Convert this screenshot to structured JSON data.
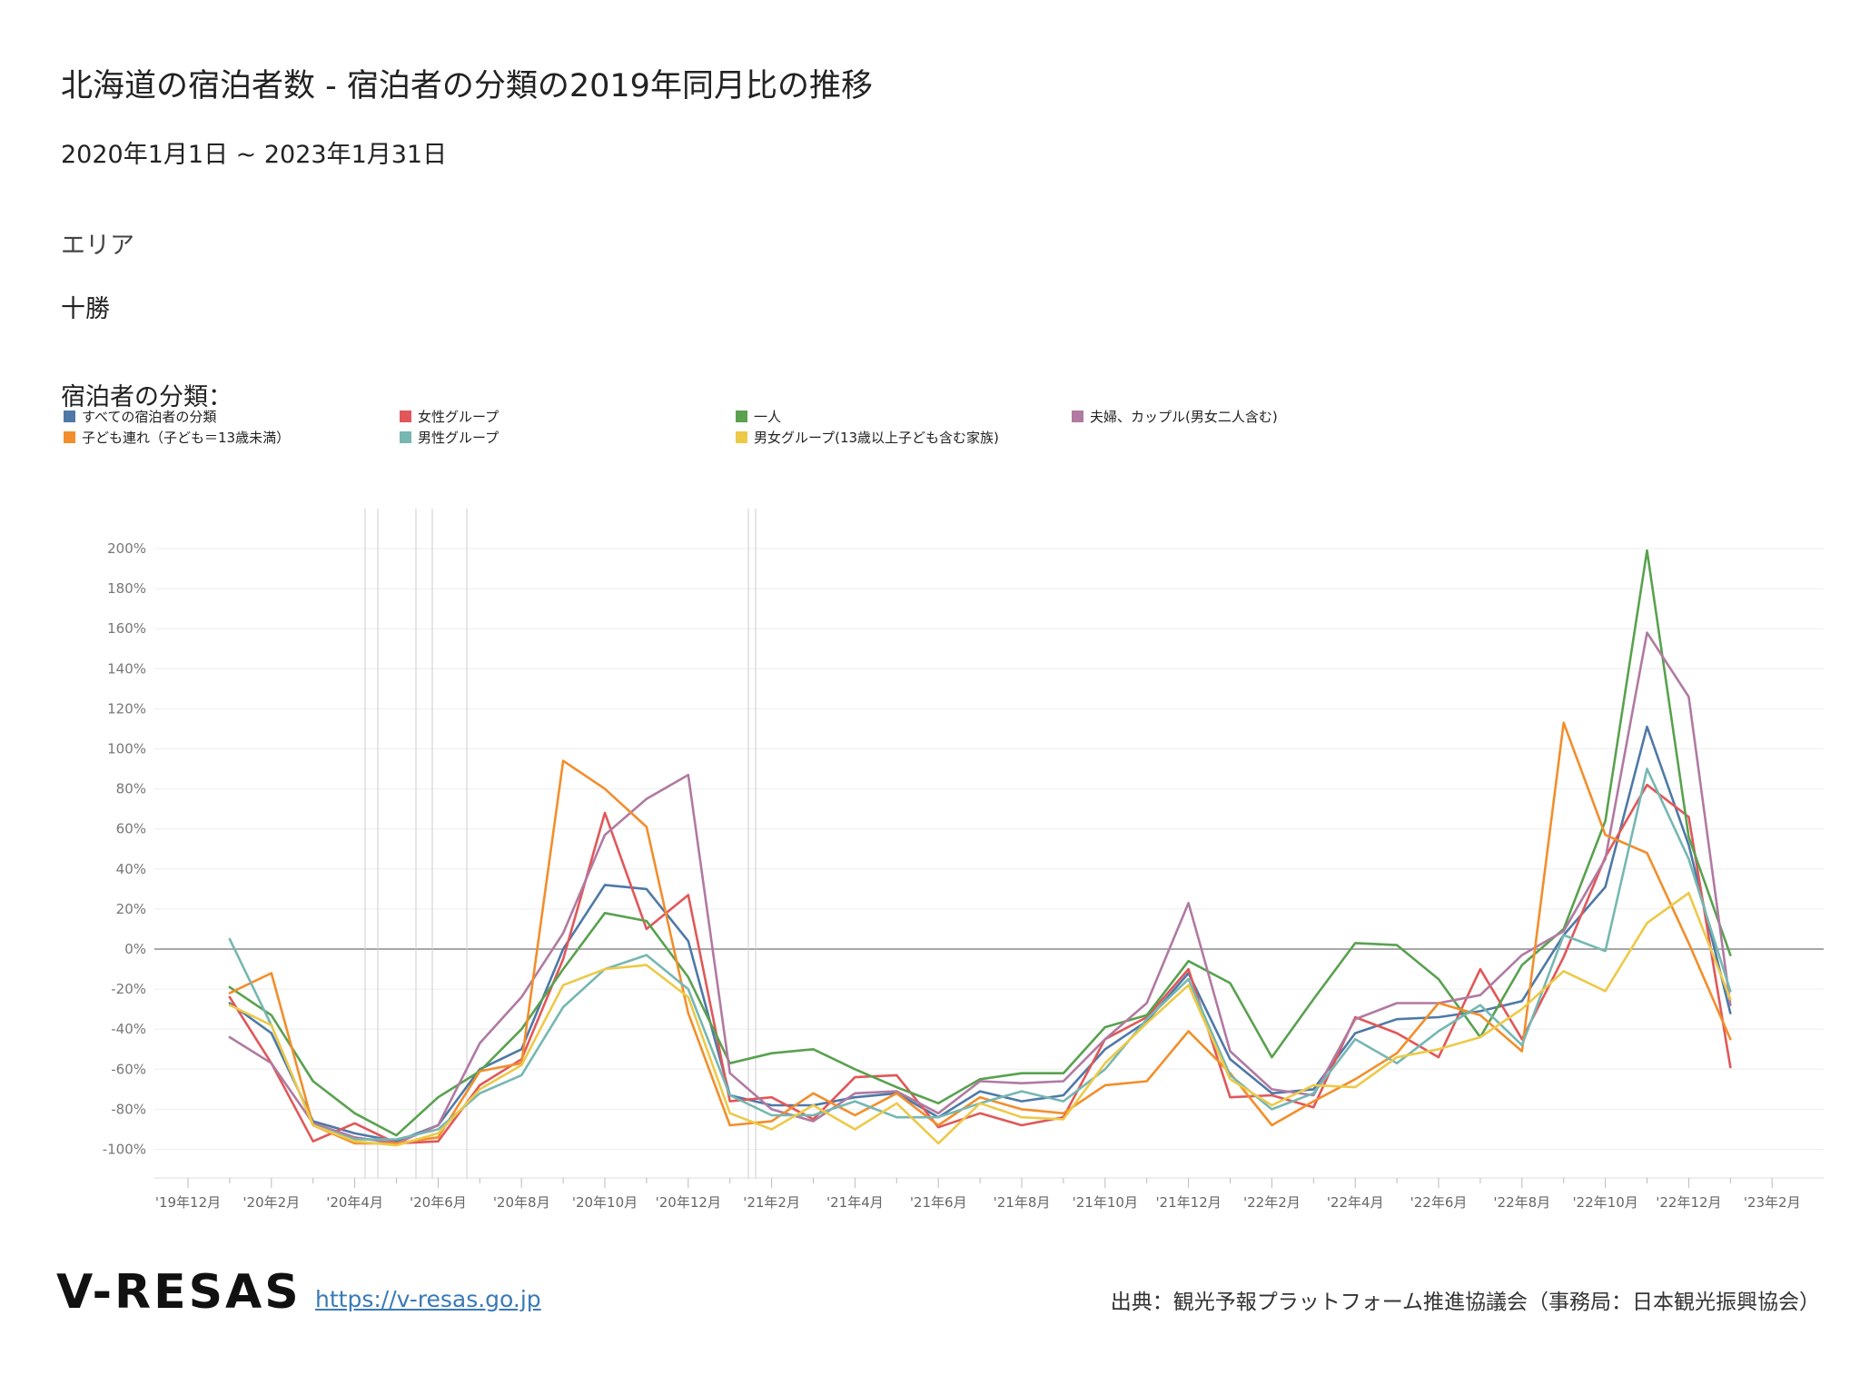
{
  "title": "北海道の宿泊者数 - 宿泊者の分類の2019年同月比の推移",
  "period": "2020年1月1日 ~ 2023年1月31日",
  "area_label": "エリア",
  "area_value": "十勝",
  "legend_title": "宿泊者の分類：",
  "footer": {
    "logo": "V-RESAS",
    "link": "https://v-resas.go.jp",
    "source": "出典：観光予報プラットフォーム推進協議会（事務局：日本観光振興協会）"
  },
  "chart_data": {
    "type": "line",
    "x": [
      "2020-01",
      "2020-02",
      "2020-03",
      "2020-04",
      "2020-05",
      "2020-06",
      "2020-07",
      "2020-08",
      "2020-09",
      "2020-10",
      "2020-11",
      "2020-12",
      "2021-01",
      "2021-02",
      "2021-03",
      "2021-04",
      "2021-05",
      "2021-06",
      "2021-07",
      "2021-08",
      "2021-09",
      "2021-10",
      "2021-11",
      "2021-12",
      "2022-01",
      "2022-02",
      "2022-03",
      "2022-04",
      "2022-05",
      "2022-06",
      "2022-07",
      "2022-08",
      "2022-09",
      "2022-10",
      "2022-11",
      "2022-12",
      "2023-01"
    ],
    "x_ticks": [
      "'19年12月",
      "'20年2月",
      "'20年4月",
      "'20年6月",
      "'20年8月",
      "'20年10月",
      "'20年12月",
      "'21年2月",
      "'21年4月",
      "'21年6月",
      "'21年8月",
      "'21年10月",
      "'21年12月",
      "'22年2月",
      "'22年4月",
      "'22年6月",
      "'22年8月",
      "'22年10月",
      "'22年12月",
      "'23年2月"
    ],
    "y_ticks": [
      "200%",
      "180%",
      "160%",
      "140%",
      "120%",
      "100%",
      "80%",
      "60%",
      "40%",
      "20%",
      "0%",
      "-20%",
      "-40%",
      "-60%",
      "-80%",
      "-100%"
    ],
    "ylim": [
      -110,
      205
    ],
    "grid": true,
    "legend_position": "top",
    "series": [
      {
        "name": "すべての宿泊者の分類",
        "color": "#4e79a7",
        "values": [
          -27,
          -42,
          -86,
          -92,
          -96,
          -88,
          -60,
          -50,
          0,
          32,
          30,
          4,
          -73,
          -78,
          -78,
          -74,
          -72,
          -84,
          -71,
          -76,
          -73,
          -50,
          -36,
          -12,
          -55,
          -72,
          -70,
          -42,
          -35,
          -34,
          -31,
          -26,
          7,
          31,
          111,
          52,
          -32
        ]
      },
      {
        "name": "女性グループ",
        "color": "#e15759",
        "values": [
          -24,
          -57,
          -96,
          -87,
          -97,
          -96,
          -68,
          -55,
          -5,
          68,
          10,
          27,
          -76,
          -74,
          -85,
          -64,
          -63,
          -89,
          -82,
          -88,
          -84,
          -45,
          -34,
          -10,
          -74,
          -73,
          -79,
          -34,
          -42,
          -54,
          -10,
          -45,
          -4,
          46,
          82,
          66,
          -59
        ]
      },
      {
        "name": "一人",
        "color": "#59a14f",
        "values": [
          -19,
          -33,
          -66,
          -82,
          -93,
          -74,
          -61,
          -40,
          -10,
          18,
          14,
          -14,
          -57,
          -52,
          -50,
          -60,
          -69,
          -77,
          -65,
          -62,
          -62,
          -39,
          -33,
          -6,
          -17,
          -54,
          -25,
          3,
          2,
          -15,
          -44,
          -8,
          10,
          64,
          199,
          56,
          -3
        ]
      },
      {
        "name": "夫婦、カップル(男女二人含む)",
        "color": "#b07aa1",
        "values": [
          -44,
          -57,
          -87,
          -94,
          -97,
          -88,
          -47,
          -24,
          8,
          57,
          75,
          87,
          -62,
          -80,
          -86,
          -72,
          -71,
          -82,
          -66,
          -67,
          -66,
          -45,
          -27,
          23,
          -51,
          -70,
          -73,
          -35,
          -27,
          -27,
          -23,
          -3,
          9,
          45,
          158,
          126,
          -28
        ]
      },
      {
        "name": "子ども連れ（子ども＝13歳未満）",
        "color": "#f28e2b",
        "values": [
          -22,
          -12,
          -88,
          -97,
          -97,
          -94,
          -61,
          -57,
          94,
          80,
          61,
          -32,
          -88,
          -86,
          -72,
          -83,
          -72,
          -88,
          -74,
          -80,
          -82,
          -68,
          -66,
          -41,
          -62,
          -88,
          -76,
          -65,
          -52,
          -27,
          -33,
          -51,
          113,
          57,
          48,
          3,
          -45
        ]
      },
      {
        "name": "男性グループ",
        "color": "#76b7b2",
        "values": [
          5,
          -38,
          -88,
          -95,
          -95,
          -90,
          -72,
          -63,
          -29,
          -10,
          -3,
          -20,
          -73,
          -83,
          -83,
          -76,
          -84,
          -84,
          -77,
          -71,
          -76,
          -60,
          -35,
          -15,
          -63,
          -80,
          -72,
          -45,
          -57,
          -41,
          -28,
          -48,
          7,
          -1,
          90,
          45,
          -21
        ]
      },
      {
        "name": "男女グループ(13歳以上子ども含む家族)",
        "color": "#edc948",
        "values": [
          -28,
          -38,
          -88,
          -96,
          -98,
          -92,
          -70,
          -58,
          -18,
          -10,
          -8,
          -24,
          -82,
          -90,
          -78,
          -90,
          -77,
          -97,
          -77,
          -84,
          -85,
          -57,
          -37,
          -18,
          -65,
          -78,
          -68,
          -69,
          -54,
          -50,
          -44,
          -30,
          -11,
          -21,
          13,
          28,
          -25
        ]
      }
    ]
  }
}
